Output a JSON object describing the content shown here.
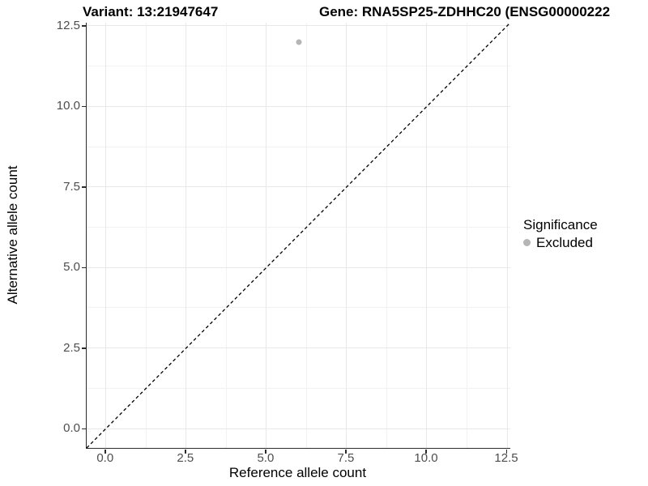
{
  "header": {
    "variant_title": "Variant: 13:21947647",
    "gene_title": "Gene: RNA5SP25-ZDHHC20 (ENSG00000222"
  },
  "chart_data": {
    "type": "scatter",
    "xlabel": "Reference allele count",
    "ylabel": "Alternative allele count",
    "xlim": [
      -0.6,
      12.6
    ],
    "ylim": [
      -0.6,
      12.6
    ],
    "xticks": {
      "values": [
        0,
        2.5,
        5,
        7.5,
        10,
        12.5
      ],
      "labels": [
        "0.0",
        "2.5",
        "5.0",
        "7.5",
        "10.0",
        "12.5"
      ]
    },
    "yticks": {
      "values": [
        0,
        2.5,
        5,
        7.5,
        10,
        12.5
      ],
      "labels": [
        "0.0",
        "2.5",
        "5.0",
        "7.5",
        "10.0",
        "12.5"
      ]
    },
    "grid": {
      "major": true,
      "minor": true
    },
    "points": [
      {
        "x": 6,
        "y": 12,
        "series": "Excluded",
        "color": "#b5b5b5"
      }
    ],
    "reference_line": {
      "equation": "y = x",
      "style": "dashed",
      "color": "#000000"
    },
    "legend": {
      "title": "Significance",
      "position": "right",
      "items": [
        {
          "label": "Excluded",
          "color": "#b5b5b5"
        }
      ]
    }
  },
  "colors": {
    "background": "#ffffff",
    "grid_major": "#e8e8e8",
    "grid_minor": "#f2f2f2",
    "axis_line": "#2b2b2b",
    "tick_label": "#4d4d4d",
    "point": "#b5b5b5",
    "dashed_line": "#000000"
  }
}
